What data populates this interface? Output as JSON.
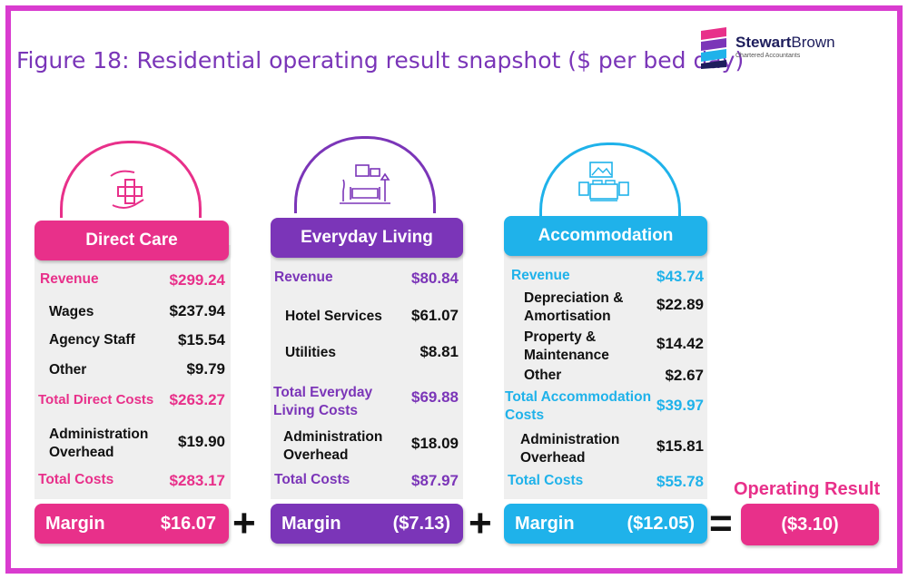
{
  "title": "Figure 18: Residential operating result snapshot ($ per bed day)",
  "logo": {
    "name_bold": "Stewart",
    "name_regular": "Brown",
    "subtitle": "Chartered Accountants"
  },
  "colors": {
    "border": "#d93ccf",
    "direct_care": "#e8308a",
    "everyday_living": "#7b35b8",
    "accommodation": "#1fb2ea",
    "panel_bg": "#efefef"
  },
  "direct_care": {
    "header": "Direct Care",
    "icon": "hands-cross-icon",
    "revenue_label": "Revenue",
    "revenue_value": "$299.24",
    "items": [
      {
        "label": "Wages",
        "value": "$237.94"
      },
      {
        "label": "Agency Staff",
        "value": "$15.54"
      },
      {
        "label": "Other",
        "value": "$9.79"
      }
    ],
    "total_direct_label": "Total Direct Costs",
    "total_direct_value": "$263.27",
    "admin_label": "Administration Overhead",
    "admin_value": "$19.90",
    "total_costs_label": "Total Costs",
    "total_costs_value": "$283.17",
    "margin_label": "Margin",
    "margin_value": "$16.07"
  },
  "everyday_living": {
    "header": "Everyday Living",
    "icon": "living-room-icon",
    "revenue_label": "Revenue",
    "revenue_value": "$80.84",
    "items": [
      {
        "label": "Hotel Services",
        "value": "$61.07"
      },
      {
        "label": "Utilities",
        "value": "$8.81"
      }
    ],
    "total_direct_label": "Total Everyday Living Costs",
    "total_direct_value": "$69.88",
    "admin_label": "Administration Overhead",
    "admin_value": "$18.09",
    "total_costs_label": "Total Costs",
    "total_costs_value": "$87.97",
    "margin_label": "Margin",
    "margin_value": "($7.13)"
  },
  "accommodation": {
    "header": "Accommodation",
    "icon": "bed-icon",
    "revenue_label": "Revenue",
    "revenue_value": "$43.74",
    "items": [
      {
        "label": "Depreciation & Amortisation",
        "value": "$22.89"
      },
      {
        "label": "Property & Maintenance",
        "value": "$14.42"
      },
      {
        "label": "Other",
        "value": "$2.67"
      }
    ],
    "total_direct_label": "Total Accommodation Costs",
    "total_direct_value": "$39.97",
    "admin_label": "Administration Overhead",
    "admin_value": "$15.81",
    "total_costs_label": "Total Costs",
    "total_costs_value": "$55.78",
    "margin_label": "Margin",
    "margin_value": "($12.05)"
  },
  "operators": {
    "plus": "+",
    "equals": "="
  },
  "operating_result": {
    "label": "Operating Result",
    "value": "($3.10)"
  }
}
